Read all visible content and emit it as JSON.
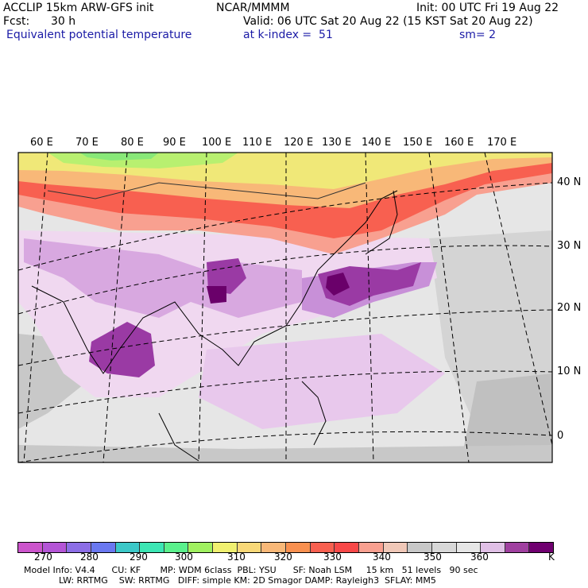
{
  "header": {
    "model": "ACCLIP 15km ARW-GFS init",
    "org": "NCAR/MMMM",
    "init": "Init: 00 UTC Fri 19 Aug 22",
    "fcst_label": "Fcst:",
    "fcst_value": "30 h",
    "valid": "Valid: 06 UTC Sat 20 Aug 22 (15 KST Sat 20 Aug 22)",
    "field": "Equivalent potential temperature",
    "level": "at k-index =  51",
    "smoothing": "sm= 2"
  },
  "map": {
    "lon_labels": [
      "60 E",
      "70 E",
      "80 E",
      "90 E",
      "100 E",
      "110 E",
      "120 E",
      "130 E",
      "140 E",
      "150 E",
      "160 E",
      "170 E"
    ],
    "lat_labels": [
      "40 N",
      "30 N",
      "20 N",
      "10 N",
      "0"
    ]
  },
  "colorbar": {
    "colors": [
      "#cc55cc",
      "#b455d6",
      "#8c6ee6",
      "#6a78f0",
      "#3cc8c8",
      "#3ce6b4",
      "#5af08c",
      "#a0f060",
      "#f0f070",
      "#f8d878",
      "#f8b878",
      "#f89050",
      "#f86050",
      "#f84848",
      "#f8a090",
      "#f0c8b8",
      "#c8c8c8",
      "#d8d8d8",
      "#e6e6e6",
      "#e0c0e6",
      "#a040a0",
      "#700070"
    ],
    "tick_labels": [
      "270",
      "280",
      "290",
      "300",
      "310",
      "320",
      "330",
      "340",
      "350",
      "360",
      "K"
    ]
  },
  "footer": {
    "line1": "Model Info: V4.4      CU: KF       MP: WDM 6class  PBL: YSU      SF: Noah LSM     15 km   51 levels   90 sec",
    "line2": "LW: RRTMG    SW: RRTMG   DIFF: simple KM: 2D Smagor DAMP: Rayleigh3  SFLAY: MM5"
  }
}
